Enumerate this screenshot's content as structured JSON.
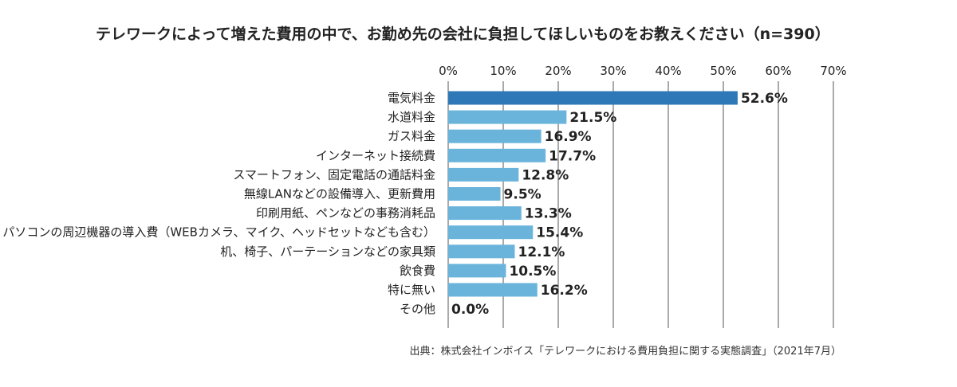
{
  "chart_data": {
    "type": "bar",
    "orientation": "horizontal",
    "title": "テレワークによって増えた費用の中で、お勤め先の会社に負担してほしいものをお教えください（n=390）",
    "source": "出典：株式会社インボイス「テレワークにおける費用負担に関する実態調査」（2021年7月）",
    "categories": [
      "電気料金",
      "水道料金",
      "ガス料金",
      "インターネット接続費",
      "スマートフォン、固定電話の通話料金",
      "無線LANなどの設備導入、更新費用",
      "印刷用紙、ペンなどの事務消耗品",
      "パソコンの周辺機器の導入費（WEBカメラ、マイク、ヘッドセットなども含む）",
      "机、椅子、パーテーションなどの家具類",
      "飲食費",
      "特に無い",
      "その他"
    ],
    "values": [
      52.6,
      21.5,
      16.9,
      17.7,
      12.8,
      9.5,
      13.3,
      15.4,
      12.1,
      10.5,
      16.2,
      0.0
    ],
    "value_labels": [
      "52.6%",
      "21.5%",
      "16.9%",
      "17.7%",
      "12.8%",
      "9.5%",
      "13.3%",
      "15.4%",
      "12.1%",
      "10.5%",
      "16.2%",
      "0.0%"
    ],
    "xlim": [
      0,
      70
    ],
    "ticks": [
      0,
      10,
      20,
      30,
      40,
      50,
      60,
      70
    ],
    "tick_labels": [
      "0%",
      "10%",
      "20%",
      "30%",
      "40%",
      "50%",
      "60%",
      "70%"
    ],
    "axis_position": "top",
    "grid": true,
    "highlight_color": "#2e78b7",
    "bar_color": "#6ab4dc",
    "grid_color": "#555555"
  }
}
